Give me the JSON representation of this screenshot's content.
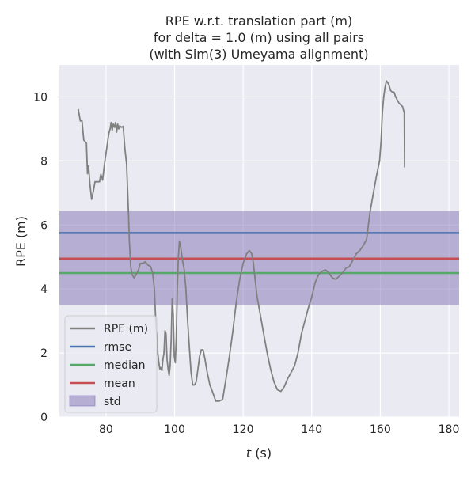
{
  "chart_data": {
    "type": "line",
    "title": [
      "RPE w.r.t. translation part (m)",
      "for delta = 1.0 (m) using all pairs",
      "(with Sim(3) Umeyama alignment)"
    ],
    "xlabel_var": "t",
    "xlabel_unit": " (s)",
    "ylabel": "RPE (m)",
    "xlim": [
      66.4,
      183.0
    ],
    "ylim": [
      0,
      11.0
    ],
    "xticks": [
      80,
      100,
      120,
      140,
      160,
      180
    ],
    "yticks": [
      0,
      2,
      4,
      6,
      8,
      10
    ],
    "grid": true,
    "legend_position": "lower-left",
    "series": [
      {
        "name": "RPE (m)",
        "color": "#808080",
        "points": [
          [
            71.9,
            9.62
          ],
          [
            72.5,
            9.25
          ],
          [
            73,
            9.25
          ],
          [
            73.5,
            8.65
          ],
          [
            74,
            8.6
          ],
          [
            74.3,
            8.55
          ],
          [
            74.6,
            7.6
          ],
          [
            74.9,
            7.85
          ],
          [
            75.3,
            7.3
          ],
          [
            75.8,
            6.8
          ],
          [
            76.3,
            7.05
          ],
          [
            76.8,
            7.35
          ],
          [
            77.5,
            7.35
          ],
          [
            78.1,
            7.35
          ],
          [
            78.5,
            7.58
          ],
          [
            79,
            7.4
          ],
          [
            79.5,
            7.85
          ],
          [
            80.2,
            8.4
          ],
          [
            80.8,
            8.85
          ],
          [
            81.2,
            9.0
          ],
          [
            81.5,
            9.2
          ],
          [
            81.8,
            8.95
          ],
          [
            82.1,
            9.15
          ],
          [
            82.5,
            9.05
          ],
          [
            82.8,
            9.2
          ],
          [
            83.1,
            8.9
          ],
          [
            83.4,
            9.15
          ],
          [
            83.7,
            9.0
          ],
          [
            84,
            9.1
          ],
          [
            84.5,
            9.05
          ],
          [
            85,
            9.08
          ],
          [
            85.5,
            8.4
          ],
          [
            86,
            7.9
          ],
          [
            86.5,
            6.5
          ],
          [
            86.8,
            5.5
          ],
          [
            87.2,
            4.7
          ],
          [
            87.6,
            4.45
          ],
          [
            88.2,
            4.35
          ],
          [
            88.8,
            4.45
          ],
          [
            89.5,
            4.6
          ],
          [
            90,
            4.8
          ],
          [
            90.7,
            4.8
          ],
          [
            91.5,
            4.85
          ],
          [
            92.2,
            4.75
          ],
          [
            93,
            4.7
          ],
          [
            93.6,
            4.5
          ],
          [
            94.1,
            4.0
          ],
          [
            94.5,
            3.0
          ],
          [
            94.8,
            2.6
          ],
          [
            95.1,
            2.0
          ],
          [
            95.4,
            1.7
          ],
          [
            95.7,
            1.5
          ],
          [
            96,
            1.55
          ],
          [
            96.3,
            1.45
          ],
          [
            96.6,
            1.8
          ],
          [
            96.9,
            2.0
          ],
          [
            97.2,
            2.7
          ],
          [
            97.5,
            2.6
          ],
          [
            97.8,
            1.8
          ],
          [
            98.1,
            1.5
          ],
          [
            98.4,
            1.3
          ],
          [
            98.7,
            1.6
          ],
          [
            99,
            2.4
          ],
          [
            99.3,
            3.7
          ],
          [
            99.6,
            3.2
          ],
          [
            99.9,
            1.9
          ],
          [
            100.2,
            1.7
          ],
          [
            100.5,
            2.5
          ],
          [
            100.8,
            4.1
          ],
          [
            101.1,
            5.0
          ],
          [
            101.4,
            5.5
          ],
          [
            101.8,
            5.3
          ],
          [
            102.3,
            4.9
          ],
          [
            102.8,
            4.6
          ],
          [
            103.3,
            4.0
          ],
          [
            103.8,
            3.0
          ],
          [
            104.3,
            2.2
          ],
          [
            104.8,
            1.4
          ],
          [
            105.3,
            1.0
          ],
          [
            105.8,
            1.0
          ],
          [
            106.3,
            1.1
          ],
          [
            106.8,
            1.5
          ],
          [
            107.3,
            1.9
          ],
          [
            107.8,
            2.1
          ],
          [
            108.3,
            2.1
          ],
          [
            108.8,
            1.85
          ],
          [
            109.5,
            1.4
          ],
          [
            110.3,
            1.0
          ],
          [
            111,
            0.8
          ],
          [
            112,
            0.5
          ],
          [
            113,
            0.5
          ],
          [
            114,
            0.55
          ],
          [
            115,
            1.2
          ],
          [
            116,
            1.9
          ],
          [
            117,
            2.7
          ],
          [
            118,
            3.6
          ],
          [
            119,
            4.3
          ],
          [
            120,
            4.8
          ],
          [
            121,
            5.1
          ],
          [
            121.8,
            5.2
          ],
          [
            122.5,
            5.1
          ],
          [
            123,
            4.8
          ],
          [
            124,
            3.8
          ],
          [
            125,
            3.2
          ],
          [
            126,
            2.6
          ],
          [
            127,
            2.0
          ],
          [
            128,
            1.5
          ],
          [
            129,
            1.1
          ],
          [
            130,
            0.85
          ],
          [
            131,
            0.8
          ],
          [
            132,
            0.95
          ],
          [
            133,
            1.2
          ],
          [
            134,
            1.4
          ],
          [
            135,
            1.6
          ],
          [
            136,
            2.0
          ],
          [
            137,
            2.6
          ],
          [
            138,
            3.0
          ],
          [
            139,
            3.4
          ],
          [
            140,
            3.75
          ],
          [
            141,
            4.2
          ],
          [
            142,
            4.45
          ],
          [
            143,
            4.55
          ],
          [
            144,
            4.6
          ],
          [
            145,
            4.5
          ],
          [
            146,
            4.35
          ],
          [
            147,
            4.3
          ],
          [
            148,
            4.4
          ],
          [
            149,
            4.5
          ],
          [
            150,
            4.65
          ],
          [
            151,
            4.7
          ],
          [
            152,
            4.9
          ],
          [
            153,
            5.1
          ],
          [
            154,
            5.2
          ],
          [
            155,
            5.35
          ],
          [
            156,
            5.55
          ],
          [
            157,
            6.4
          ],
          [
            158,
            7.0
          ],
          [
            159,
            7.6
          ],
          [
            159.8,
            8.0
          ],
          [
            160.2,
            8.6
          ],
          [
            160.6,
            9.5
          ],
          [
            161,
            10.0
          ],
          [
            161.4,
            10.3
          ],
          [
            161.8,
            10.5
          ],
          [
            162.2,
            10.45
          ],
          [
            162.6,
            10.35
          ],
          [
            163,
            10.2
          ],
          [
            163.5,
            10.15
          ],
          [
            164,
            10.15
          ],
          [
            164.5,
            10.0
          ],
          [
            165,
            9.9
          ],
          [
            165.5,
            9.8
          ],
          [
            166,
            9.75
          ],
          [
            166.5,
            9.7
          ],
          [
            167,
            9.5
          ],
          [
            167.1,
            7.8
          ]
        ]
      }
    ],
    "stats": [
      {
        "name": "rmse",
        "value": 5.75,
        "color": "#4c72b0"
      },
      {
        "name": "median",
        "value": 4.5,
        "color": "#55a868"
      },
      {
        "name": "mean",
        "value": 4.95,
        "color": "#c44e52"
      }
    ],
    "std": {
      "name": "std",
      "low": 3.5,
      "high": 6.43,
      "color": "#8172b3"
    }
  }
}
